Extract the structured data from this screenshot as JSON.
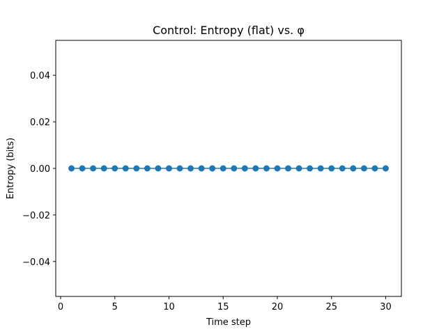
{
  "chart_data": {
    "type": "line",
    "title": "Control: Entropy (flat) vs. φ",
    "xlabel": "Time step",
    "ylabel": "Entropy (bits)",
    "xlim": [
      -0.45,
      31.45
    ],
    "ylim": [
      -0.055,
      0.055
    ],
    "xticks": [
      0,
      5,
      10,
      15,
      20,
      25,
      30
    ],
    "xtick_labels": [
      "0",
      "5",
      "10",
      "15",
      "20",
      "25",
      "30"
    ],
    "yticks": [
      -0.04,
      -0.02,
      0.0,
      0.02,
      0.04
    ],
    "ytick_labels": [
      "−0.04",
      "−0.02",
      "0.00",
      "0.02",
      "0.04"
    ],
    "grid": false,
    "series": [
      {
        "color": "#1f77b4",
        "marker": "circle",
        "x": [
          1,
          2,
          3,
          4,
          5,
          6,
          7,
          8,
          9,
          10,
          11,
          12,
          13,
          14,
          15,
          16,
          17,
          18,
          19,
          20,
          21,
          22,
          23,
          24,
          25,
          26,
          27,
          28,
          29,
          30
        ],
        "y": [
          0,
          0,
          0,
          0,
          0,
          0,
          0,
          0,
          0,
          0,
          0,
          0,
          0,
          0,
          0,
          0,
          0,
          0,
          0,
          0,
          0,
          0,
          0,
          0,
          0,
          0,
          0,
          0,
          0,
          0
        ]
      }
    ]
  }
}
